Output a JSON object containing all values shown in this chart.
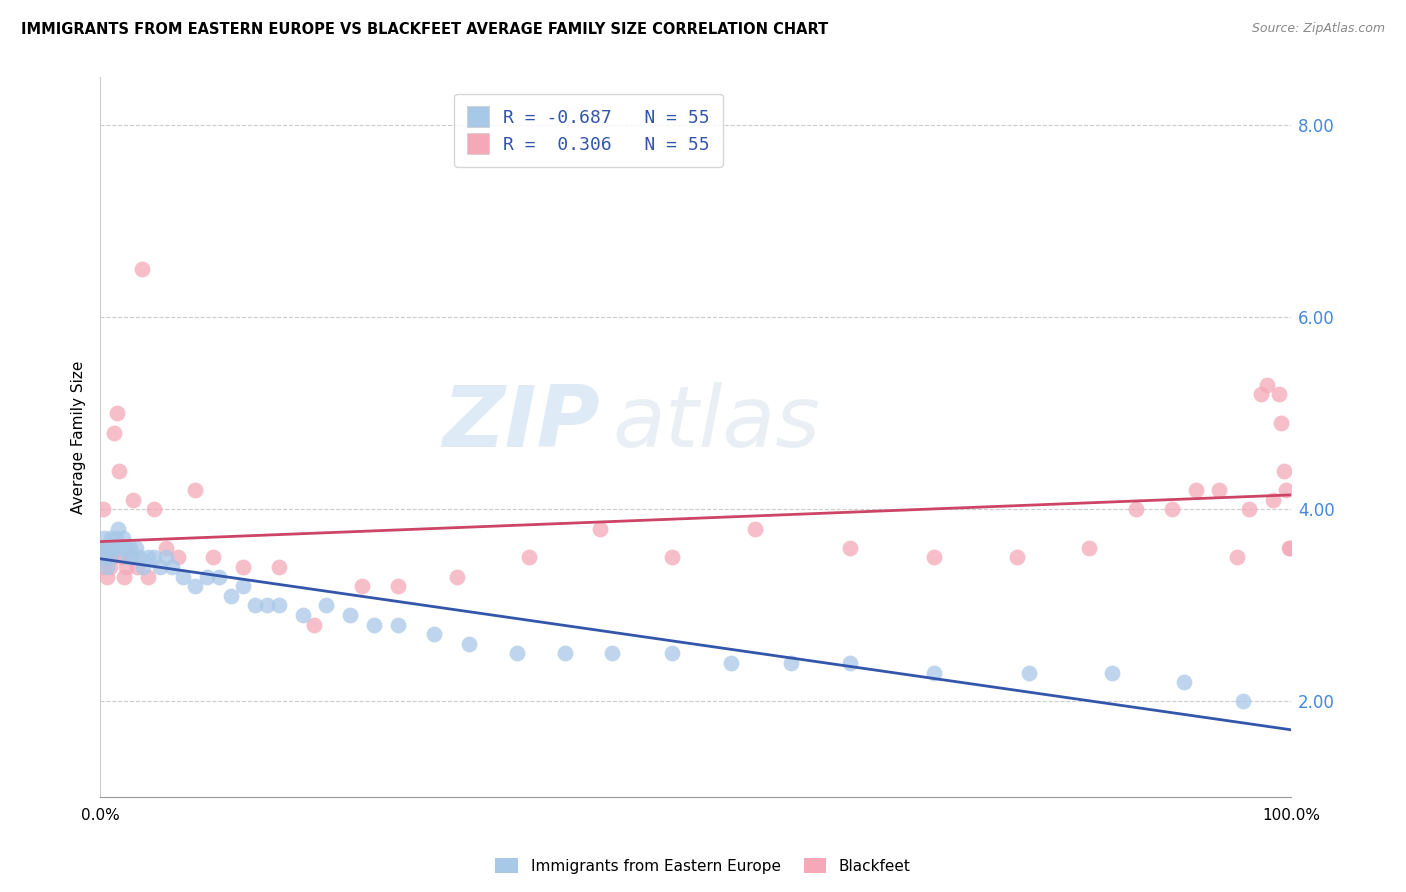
{
  "title": "IMMIGRANTS FROM EASTERN EUROPE VS BLACKFEET AVERAGE FAMILY SIZE CORRELATION CHART",
  "source": "Source: ZipAtlas.com",
  "ylabel": "Average Family Size",
  "legend_blue_r": "-0.687",
  "legend_blue_n": "55",
  "legend_pink_r": "0.306",
  "legend_pink_n": "55",
  "blue_color": "#a8c8e8",
  "pink_color": "#f4a8b8",
  "blue_line_color": "#3355aa",
  "pink_line_color": "#cc4466",
  "watermark_zip": "ZIP",
  "watermark_atlas": "atlas",
  "yticks_right": [
    2.0,
    4.0,
    6.0,
    8.0
  ],
  "blue_points_x": [
    0.1,
    0.2,
    0.3,
    0.4,
    0.5,
    0.6,
    0.7,
    0.8,
    0.9,
    1.0,
    1.1,
    1.3,
    1.5,
    1.7,
    1.9,
    2.1,
    2.3,
    2.5,
    2.8,
    3.0,
    3.3,
    3.6,
    4.0,
    4.5,
    5.0,
    5.5,
    6.0,
    7.0,
    8.0,
    9.0,
    10.0,
    11.0,
    12.0,
    13.0,
    14.0,
    15.0,
    17.0,
    19.0,
    21.0,
    23.0,
    25.0,
    28.0,
    31.0,
    35.0,
    39.0,
    43.0,
    48.0,
    53.0,
    58.0,
    63.0,
    70.0,
    78.0,
    85.0,
    91.0,
    96.0
  ],
  "blue_points_y": [
    3.6,
    3.5,
    3.7,
    3.5,
    3.6,
    3.4,
    3.6,
    3.5,
    3.7,
    3.6,
    3.6,
    3.7,
    3.8,
    3.6,
    3.7,
    3.6,
    3.5,
    3.6,
    3.5,
    3.6,
    3.5,
    3.4,
    3.5,
    3.5,
    3.4,
    3.5,
    3.4,
    3.3,
    3.2,
    3.3,
    3.3,
    3.1,
    3.2,
    3.0,
    3.0,
    3.0,
    2.9,
    3.0,
    2.9,
    2.8,
    2.8,
    2.7,
    2.6,
    2.5,
    2.5,
    2.5,
    2.5,
    2.4,
    2.4,
    2.4,
    2.3,
    2.3,
    2.3,
    2.2,
    2.0
  ],
  "pink_points_x": [
    0.1,
    0.2,
    0.3,
    0.4,
    0.5,
    0.6,
    0.7,
    0.8,
    0.9,
    1.0,
    1.2,
    1.4,
    1.6,
    1.8,
    2.0,
    2.2,
    2.5,
    2.8,
    3.1,
    3.5,
    4.0,
    4.5,
    5.5,
    6.5,
    8.0,
    9.5,
    12.0,
    15.0,
    18.0,
    22.0,
    25.0,
    30.0,
    36.0,
    42.0,
    48.0,
    55.0,
    63.0,
    70.0,
    77.0,
    83.0,
    87.0,
    90.0,
    92.0,
    94.0,
    95.5,
    96.5,
    97.5,
    98.0,
    98.5,
    99.0,
    99.2,
    99.4,
    99.6,
    99.8,
    99.9
  ],
  "pink_points_y": [
    3.5,
    4.0,
    3.4,
    3.6,
    3.5,
    3.3,
    3.5,
    3.4,
    3.6,
    3.5,
    4.8,
    5.0,
    4.4,
    3.5,
    3.3,
    3.4,
    3.5,
    4.1,
    3.4,
    6.5,
    3.3,
    4.0,
    3.6,
    3.5,
    4.2,
    3.5,
    3.4,
    3.4,
    2.8,
    3.2,
    3.2,
    3.3,
    3.5,
    3.8,
    3.5,
    3.8,
    3.6,
    3.5,
    3.5,
    3.6,
    4.0,
    4.0,
    4.2,
    4.2,
    3.5,
    4.0,
    5.2,
    5.3,
    4.1,
    5.2,
    4.9,
    4.4,
    4.2,
    3.6,
    3.6
  ]
}
